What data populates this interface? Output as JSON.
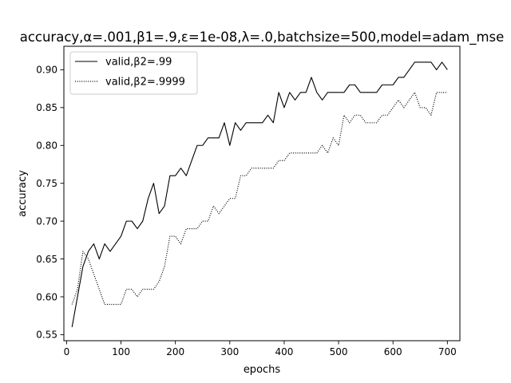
{
  "chart_data": {
    "type": "line",
    "title": "accuracy,α=.001,β1=.9,ε=1e-08,λ=.0,batchsize=500,model=adam_mse",
    "xlabel": "epochs",
    "ylabel": "accuracy",
    "xlim": [
      -5,
      723
    ],
    "ylim": [
      0.542,
      0.931
    ],
    "xticks": [
      0,
      100,
      200,
      300,
      400,
      500,
      600,
      700
    ],
    "yticks": [
      0.55,
      0.6,
      0.65,
      0.7,
      0.75,
      0.8,
      0.85,
      0.9
    ],
    "ytick_labels": [
      "0.55",
      "0.60",
      "0.65",
      "0.70",
      "0.75",
      "0.80",
      "0.85",
      "0.90"
    ],
    "grid": false,
    "legend_position": "top-left",
    "x": [
      10,
      20,
      30,
      40,
      50,
      60,
      70,
      80,
      90,
      100,
      110,
      120,
      130,
      140,
      150,
      160,
      170,
      180,
      190,
      200,
      210,
      220,
      230,
      240,
      250,
      260,
      270,
      280,
      290,
      300,
      310,
      320,
      330,
      340,
      350,
      360,
      370,
      380,
      390,
      400,
      410,
      420,
      430,
      440,
      450,
      460,
      470,
      480,
      490,
      500,
      510,
      520,
      530,
      540,
      550,
      560,
      570,
      580,
      590,
      600,
      610,
      620,
      630,
      640,
      650,
      660,
      670,
      680,
      690,
      700
    ],
    "series": [
      {
        "name": "valid,β2=.99",
        "style": "solid",
        "color": "#000000",
        "values": [
          0.56,
          0.6,
          0.64,
          0.66,
          0.67,
          0.65,
          0.67,
          0.66,
          0.67,
          0.68,
          0.7,
          0.7,
          0.69,
          0.7,
          0.73,
          0.75,
          0.71,
          0.72,
          0.76,
          0.76,
          0.77,
          0.76,
          0.78,
          0.8,
          0.8,
          0.81,
          0.81,
          0.81,
          0.83,
          0.8,
          0.83,
          0.82,
          0.83,
          0.83,
          0.83,
          0.83,
          0.84,
          0.83,
          0.87,
          0.85,
          0.87,
          0.86,
          0.87,
          0.87,
          0.89,
          0.87,
          0.86,
          0.87,
          0.87,
          0.87,
          0.87,
          0.88,
          0.88,
          0.87,
          0.87,
          0.87,
          0.87,
          0.88,
          0.88,
          0.88,
          0.89,
          0.89,
          0.9,
          0.91,
          0.91,
          0.91,
          0.91,
          0.9,
          0.91,
          0.9
        ]
      },
      {
        "name": "valid,β2=.9999",
        "style": "dotted",
        "color": "#000000",
        "values": [
          0.59,
          0.61,
          0.66,
          0.65,
          0.63,
          0.61,
          0.59,
          0.59,
          0.59,
          0.59,
          0.61,
          0.61,
          0.6,
          0.61,
          0.61,
          0.61,
          0.62,
          0.64,
          0.68,
          0.68,
          0.67,
          0.69,
          0.69,
          0.69,
          0.7,
          0.7,
          0.72,
          0.71,
          0.72,
          0.73,
          0.73,
          0.76,
          0.76,
          0.77,
          0.77,
          0.77,
          0.77,
          0.77,
          0.78,
          0.78,
          0.79,
          0.79,
          0.79,
          0.79,
          0.79,
          0.79,
          0.8,
          0.79,
          0.81,
          0.8,
          0.84,
          0.83,
          0.84,
          0.84,
          0.83,
          0.83,
          0.83,
          0.84,
          0.84,
          0.85,
          0.86,
          0.85,
          0.86,
          0.87,
          0.85,
          0.85,
          0.84,
          0.87,
          0.87,
          0.87
        ]
      }
    ]
  }
}
